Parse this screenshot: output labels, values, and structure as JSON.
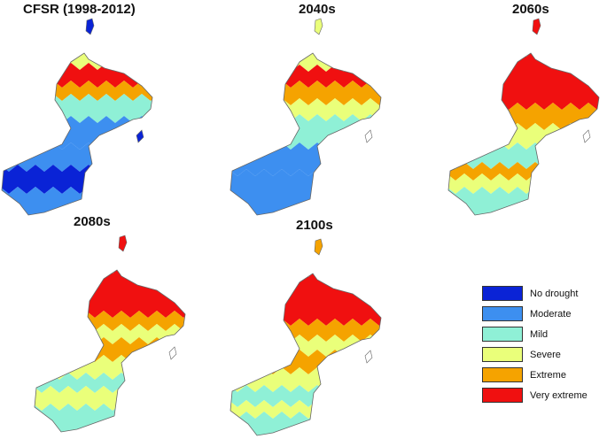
{
  "colors": {
    "no_drought": "#0a23d6",
    "moderate": "#3d8ff0",
    "mild": "#8ff0d6",
    "severe": "#eaff7a",
    "extreme": "#f5a300",
    "very_extreme": "#f01010"
  },
  "panels": [
    {
      "title": "CFSR (1998-2012)",
      "dominant": [
        "moderate",
        "mild",
        "severe",
        "extreme",
        "very_extreme",
        "no_drought"
      ]
    },
    {
      "title": "2040s",
      "dominant": [
        "moderate",
        "mild",
        "severe",
        "extreme",
        "very_extreme"
      ]
    },
    {
      "title": "2060s",
      "dominant": [
        "mild",
        "severe",
        "extreme",
        "very_extreme"
      ]
    },
    {
      "title": "2080s",
      "dominant": [
        "mild",
        "severe",
        "extreme",
        "very_extreme"
      ]
    },
    {
      "title": "2100s",
      "dominant": [
        "mild",
        "severe",
        "extreme",
        "very_extreme"
      ]
    }
  ],
  "legend": [
    {
      "label": "No drought",
      "color": "#0a23d6"
    },
    {
      "label": "Moderate",
      "color": "#3d8ff0"
    },
    {
      "label": "Mild",
      "color": "#8ff0d6"
    },
    {
      "label": "Severe",
      "color": "#eaff7a"
    },
    {
      "label": "Extreme",
      "color": "#f5a300"
    },
    {
      "label": "Very extreme",
      "color": "#f01010"
    }
  ]
}
